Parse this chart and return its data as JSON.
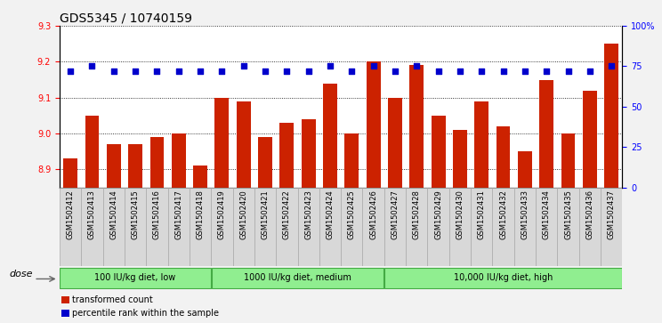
{
  "title": "GDS5345 / 10740159",
  "samples": [
    "GSM1502412",
    "GSM1502413",
    "GSM1502414",
    "GSM1502415",
    "GSM1502416",
    "GSM1502417",
    "GSM1502418",
    "GSM1502419",
    "GSM1502420",
    "GSM1502421",
    "GSM1502422",
    "GSM1502423",
    "GSM1502424",
    "GSM1502425",
    "GSM1502426",
    "GSM1502427",
    "GSM1502428",
    "GSM1502429",
    "GSM1502430",
    "GSM1502431",
    "GSM1502432",
    "GSM1502433",
    "GSM1502434",
    "GSM1502435",
    "GSM1502436",
    "GSM1502437"
  ],
  "bar_values": [
    8.93,
    9.05,
    8.97,
    8.97,
    8.99,
    9.0,
    8.91,
    9.1,
    9.09,
    8.99,
    9.03,
    9.04,
    9.14,
    9.0,
    9.2,
    9.1,
    9.19,
    9.05,
    9.01,
    9.09,
    9.02,
    8.95,
    9.15,
    9.0,
    9.12,
    9.25
  ],
  "percentile_values": [
    72,
    75,
    72,
    72,
    72,
    72,
    72,
    72,
    75,
    72,
    72,
    72,
    75,
    72,
    75,
    72,
    75,
    72,
    72,
    72,
    72,
    72,
    72,
    72,
    72,
    75
  ],
  "group_boundaries": [
    0,
    7,
    15,
    26
  ],
  "group_labels": [
    "100 IU/kg diet, low",
    "1000 IU/kg diet, medium",
    "10,000 IU/kg diet, high"
  ],
  "ylim_left": [
    8.85,
    9.3
  ],
  "ylim_right": [
    0,
    100
  ],
  "yticks_left": [
    8.9,
    9.0,
    9.1,
    9.2,
    9.3
  ],
  "yticks_right": [
    0,
    25,
    50,
    75,
    100
  ],
  "bar_color": "#CC2200",
  "dot_color": "#0000CC",
  "plot_bg": "#FFFFFF",
  "fig_bg": "#F2F2F2",
  "xtick_bg": "#D8D8D8",
  "group_fill": "#90EE90",
  "group_edge": "#44AA44",
  "grid_color": "#000000",
  "dose_label": "dose",
  "legend_bar": "transformed count",
  "legend_dot": "percentile rank within the sample",
  "title_fontsize": 10,
  "tick_fontsize": 7,
  "xtick_fontsize": 6,
  "label_fontsize": 8
}
